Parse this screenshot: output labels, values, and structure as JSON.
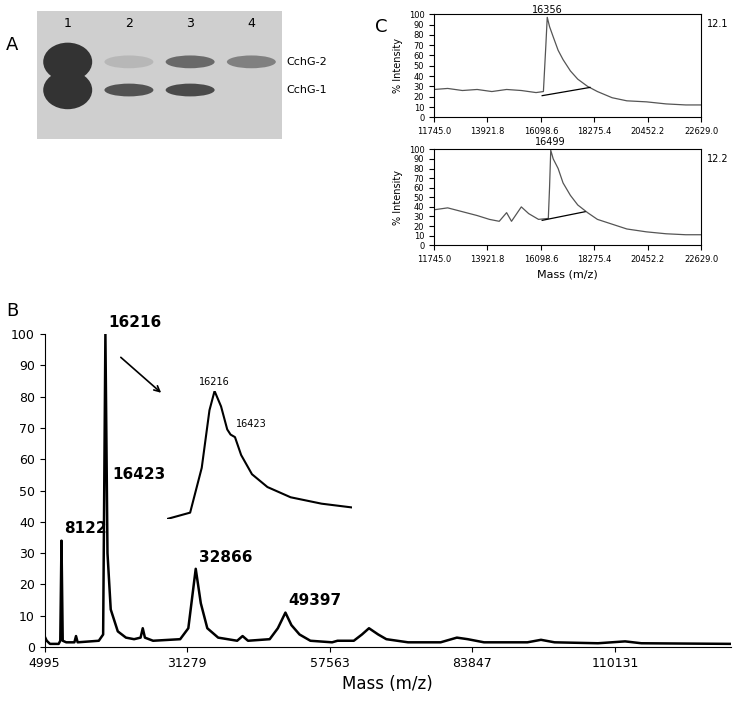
{
  "chart_data": [
    {
      "type": "gel",
      "title": "A",
      "categories": [
        "1",
        "2",
        "3",
        "4"
      ],
      "series": [
        {
          "name": "CchG-2",
          "values": [
            1.0,
            0.15,
            0.65,
            0.5
          ]
        },
        {
          "name": "CchG-1",
          "values": [
            1.0,
            0.8,
            0.85,
            0
          ]
        }
      ],
      "tick_labels": "x"
    },
    {
      "type": "line",
      "title": "B",
      "x_label": "Mass (m/z)",
      "color": "#000000",
      "x": [
        4995,
        5400,
        6000,
        7600,
        7900,
        8122,
        8350,
        9000,
        10500,
        10800,
        11100,
        15000,
        15800,
        16216,
        16600,
        17200,
        18500,
        20000,
        21500,
        22700,
        23100,
        23500,
        25000,
        30000,
        31500,
        32866,
        33800,
        35000,
        37000,
        40500,
        41500,
        42500,
        46500,
        48000,
        49397,
        50500,
        52000,
        54000,
        58000,
        59000,
        62000,
        63500,
        64800,
        66500,
        68000,
        72000,
        78000,
        81000,
        83000,
        86000,
        94000,
        96500,
        99000,
        107000,
        112000,
        115000,
        131500
      ],
      "values": [
        3.5,
        2,
        1,
        1,
        2,
        34,
        2,
        1.5,
        1.5,
        3.5,
        1.5,
        2,
        4,
        100,
        30,
        12,
        5,
        3,
        2.5,
        3,
        6,
        3,
        2,
        2.5,
        6,
        25,
        14,
        6,
        3,
        2,
        3.5,
        2,
        2.5,
        6,
        11,
        7,
        4,
        2,
        1.5,
        2,
        2,
        4,
        6,
        4,
        2.5,
        1.5,
        1.5,
        3,
        2.5,
        1.5,
        1.5,
        2.3,
        1.5,
        1.2,
        1.8,
        1.2,
        1
      ],
      "xlim": [
        4995,
        131500
      ],
      "ylim": [
        0,
        100
      ],
      "xticks": [
        4995,
        31279,
        57563,
        83847,
        110131
      ],
      "yticks": [
        0,
        10,
        20,
        30,
        40,
        50,
        60,
        70,
        80,
        90,
        100
      ],
      "annotations": [
        {
          "text": "8122",
          "x": 8122,
          "y": 34
        },
        {
          "text": "16216",
          "x": 16216,
          "y": 100
        },
        {
          "text": "16423",
          "x": 16423,
          "y": 55
        },
        {
          "text": "32866",
          "x": 32866,
          "y": 25
        },
        {
          "text": "49397",
          "x": 49397,
          "y": 11
        }
      ]
    },
    {
      "type": "line",
      "color": "#000000",
      "tick_labels": false,
      "x": [
        15600,
        15900,
        16050,
        16150,
        16216,
        16300,
        16380,
        16423,
        16480,
        16560,
        16700,
        16900,
        17200,
        17600,
        18000
      ],
      "values": [
        0,
        5,
        40,
        85,
        100,
        88,
        70,
        66,
        64,
        50,
        35,
        25,
        17,
        12,
        9
      ],
      "annotations": [
        {
          "text": "16216",
          "x": 16216,
          "y": 100
        },
        {
          "text": "16423",
          "x": 16423,
          "y": 66
        }
      ]
    },
    {
      "type": "line",
      "title": "C",
      "y_label": "% Intensity",
      "color": "#555555",
      "x": [
        11745,
        12300,
        12900,
        13500,
        14100,
        14700,
        15300,
        15900,
        16200,
        16300,
        16356,
        16450,
        16600,
        16800,
        17000,
        17300,
        17600,
        18000,
        18400,
        19000,
        19600,
        20400,
        21200,
        22000,
        22629
      ],
      "values": [
        27,
        28,
        26,
        27,
        25,
        27,
        26,
        24,
        25,
        70,
        97,
        88,
        78,
        65,
        56,
        45,
        37,
        30,
        25,
        19,
        16,
        15,
        13,
        12,
        12
      ],
      "baseline": {
        "x": [
          16150,
          18100
        ],
        "values": [
          21,
          29
        ]
      },
      "xlim": [
        11745.0,
        22629.0
      ],
      "ylim": [
        0,
        100
      ],
      "xticks": [
        {
          "value": 11745.0,
          "label": "11745.0"
        },
        13921.8,
        16098.6,
        18275.4,
        20452.2,
        {
          "value": 22629.0,
          "label": "22629.0"
        }
      ],
      "yticks": [
        0,
        10,
        20,
        30,
        40,
        50,
        60,
        70,
        80,
        90,
        100
      ],
      "annotations": [
        {
          "text": "16356",
          "x": 16356,
          "y": 97
        },
        {
          "text": "12.1"
        }
      ]
    },
    {
      "type": "line",
      "x_label": "Mass (m/z)",
      "y_label": "% Intensity",
      "color": "#555555",
      "x": [
        11745,
        12300,
        12900,
        13500,
        14000,
        14400,
        14700,
        14900,
        15300,
        15600,
        16000,
        16400,
        16450,
        16499,
        16600,
        16800,
        17000,
        17300,
        17600,
        18000,
        18400,
        19000,
        19600,
        20400,
        21200,
        22000,
        22629
      ],
      "values": [
        37,
        39,
        35,
        31,
        27,
        25,
        34,
        25,
        40,
        33,
        27,
        28,
        60,
        99,
        90,
        80,
        65,
        52,
        42,
        34,
        27,
        22,
        17,
        14,
        12,
        11,
        11
      ],
      "baseline": {
        "x": [
          16150,
          17900
        ],
        "values": [
          26,
          35
        ]
      },
      "xlim": [
        11745.0,
        22629.0
      ],
      "ylim": [
        0,
        100
      ],
      "xticks": [
        {
          "value": 11745.0,
          "label": "11745.0"
        },
        13921.8,
        16098.6,
        18275.4,
        20452.2,
        {
          "value": 22629.0,
          "label": "22629.0"
        }
      ],
      "yticks": [
        0,
        10,
        20,
        30,
        40,
        50,
        60,
        70,
        80,
        90,
        100
      ],
      "annotations": [
        {
          "text": "16499",
          "x": 16499,
          "y": 99
        },
        {
          "text": "12.2"
        }
      ]
    }
  ]
}
